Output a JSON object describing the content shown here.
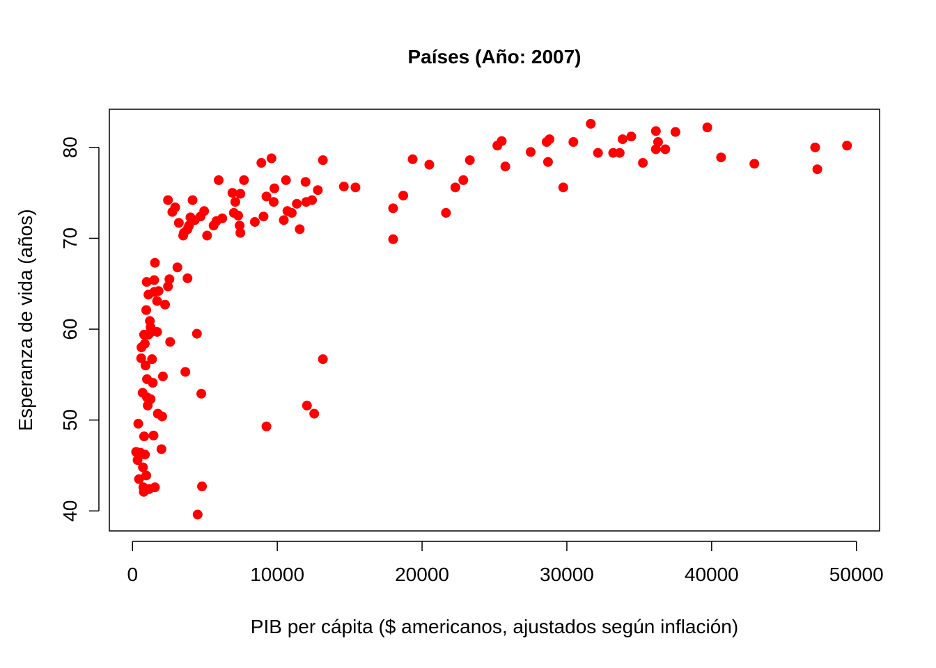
{
  "chart_data": {
    "type": "scatter",
    "title": "Países (Año: 2007)",
    "xlabel": "PIB per cápita ($ americanos, ajustados según inflación)",
    "ylabel": "Esperanza de vida (años)",
    "xlim": [
      -1600,
      51600
    ],
    "ylim": [
      37.8,
      84.2
    ],
    "xticks": [
      0,
      10000,
      20000,
      30000,
      40000,
      50000
    ],
    "yticks": [
      40,
      50,
      60,
      70,
      80
    ],
    "grid": false,
    "legend": "none",
    "point_color": "#ff0000",
    "points": [
      [
        250,
        46.5
      ],
      [
        350,
        45.6
      ],
      [
        400,
        49.6
      ],
      [
        450,
        43.5
      ],
      [
        550,
        46.4
      ],
      [
        600,
        56.8
      ],
      [
        620,
        58.0
      ],
      [
        700,
        53.0
      ],
      [
        720,
        44.8
      ],
      [
        750,
        42.6
      ],
      [
        780,
        42.1
      ],
      [
        800,
        48.2
      ],
      [
        800,
        59.4
      ],
      [
        850,
        58.4
      ],
      [
        860,
        46.2
      ],
      [
        900,
        56.0
      ],
      [
        950,
        43.9
      ],
      [
        950,
        62.1
      ],
      [
        980,
        65.2
      ],
      [
        1000,
        52.5
      ],
      [
        1000,
        54.5
      ],
      [
        1050,
        51.6
      ],
      [
        1100,
        59.4
      ],
      [
        1100,
        63.8
      ],
      [
        1150,
        42.4
      ],
      [
        1200,
        60.9
      ],
      [
        1250,
        60.2
      ],
      [
        1250,
        52.3
      ],
      [
        1300,
        59.7
      ],
      [
        1350,
        56.7
      ],
      [
        1400,
        54.1
      ],
      [
        1450,
        48.3
      ],
      [
        1500,
        64.1
      ],
      [
        1500,
        65.4
      ],
      [
        1550,
        42.6
      ],
      [
        1550,
        67.3
      ],
      [
        1700,
        59.7
      ],
      [
        1700,
        63.1
      ],
      [
        1750,
        50.7
      ],
      [
        1800,
        64.2
      ],
      [
        2000,
        46.8
      ],
      [
        2050,
        50.4
      ],
      [
        2100,
        54.8
      ],
      [
        2250,
        62.7
      ],
      [
        2450,
        74.2
      ],
      [
        2450,
        64.7
      ],
      [
        2550,
        65.5
      ],
      [
        2600,
        58.6
      ],
      [
        2750,
        72.9
      ],
      [
        2950,
        73.4
      ],
      [
        3100,
        66.8
      ],
      [
        3200,
        71.7
      ],
      [
        3500,
        70.3
      ],
      [
        3550,
        70.6
      ],
      [
        3650,
        55.3
      ],
      [
        3800,
        65.6
      ],
      [
        3800,
        71.0
      ],
      [
        3900,
        71.4
      ],
      [
        4000,
        72.3
      ],
      [
        4150,
        74.2
      ],
      [
        4300,
        72.0
      ],
      [
        4450,
        59.5
      ],
      [
        4500,
        39.6
      ],
      [
        4700,
        72.4
      ],
      [
        4750,
        52.9
      ],
      [
        4800,
        42.7
      ],
      [
        4950,
        73.0
      ],
      [
        5150,
        70.3
      ],
      [
        5600,
        71.4
      ],
      [
        5800,
        71.9
      ],
      [
        5950,
        76.4
      ],
      [
        6200,
        72.2
      ],
      [
        6900,
        75.0
      ],
      [
        7000,
        72.8
      ],
      [
        7100,
        74.0
      ],
      [
        7300,
        72.5
      ],
      [
        7400,
        71.4
      ],
      [
        7450,
        70.6
      ],
      [
        7450,
        74.9
      ],
      [
        7700,
        76.4
      ],
      [
        8450,
        71.8
      ],
      [
        8900,
        78.3
      ],
      [
        9050,
        72.4
      ],
      [
        9250,
        74.6
      ],
      [
        9250,
        49.3
      ],
      [
        9600,
        78.8
      ],
      [
        9750,
        74.0
      ],
      [
        9800,
        75.5
      ],
      [
        10450,
        72.0
      ],
      [
        10600,
        76.4
      ],
      [
        10700,
        73.0
      ],
      [
        11000,
        72.8
      ],
      [
        11350,
        73.8
      ],
      [
        11550,
        71.0
      ],
      [
        11950,
        76.2
      ],
      [
        12000,
        74.0
      ],
      [
        12050,
        51.6
      ],
      [
        12400,
        74.2
      ],
      [
        12550,
        50.7
      ],
      [
        12800,
        75.3
      ],
      [
        13150,
        56.7
      ],
      [
        13150,
        78.6
      ],
      [
        14600,
        75.7
      ],
      [
        15400,
        75.6
      ],
      [
        18000,
        73.3
      ],
      [
        18000,
        69.9
      ],
      [
        18700,
        74.7
      ],
      [
        19350,
        78.7
      ],
      [
        20500,
        78.1
      ],
      [
        21650,
        72.8
      ],
      [
        22300,
        75.6
      ],
      [
        22850,
        76.4
      ],
      [
        23300,
        78.6
      ],
      [
        25200,
        80.2
      ],
      [
        25500,
        80.7
      ],
      [
        25750,
        77.9
      ],
      [
        27500,
        79.5
      ],
      [
        28600,
        80.6
      ],
      [
        28700,
        78.4
      ],
      [
        28800,
        80.9
      ],
      [
        29750,
        75.6
      ],
      [
        30450,
        80.6
      ],
      [
        31650,
        82.6
      ],
      [
        32150,
        79.4
      ],
      [
        33200,
        79.4
      ],
      [
        33650,
        79.4
      ],
      [
        33850,
        80.9
      ],
      [
        34450,
        81.2
      ],
      [
        35250,
        78.3
      ],
      [
        36150,
        81.8
      ],
      [
        36150,
        79.8
      ],
      [
        36300,
        80.6
      ],
      [
        36800,
        79.8
      ],
      [
        37500,
        81.7
      ],
      [
        39700,
        82.2
      ],
      [
        40650,
        78.9
      ],
      [
        42950,
        78.2
      ],
      [
        47150,
        80.0
      ],
      [
        47300,
        77.6
      ],
      [
        49350,
        80.2
      ]
    ]
  }
}
